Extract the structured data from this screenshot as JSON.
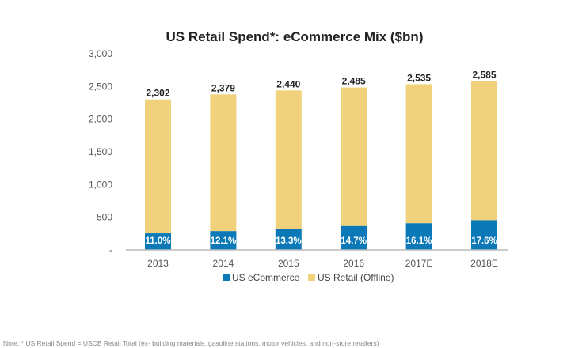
{
  "chart_data": {
    "type": "bar",
    "stacked": true,
    "title": "US Retail Spend*: eCommerce Mix ($bn)",
    "xlabel": "",
    "ylabel": "",
    "ylim": [
      0,
      3000
    ],
    "yticks": [
      0,
      500,
      1000,
      1500,
      2000,
      2500,
      3000
    ],
    "ytick_labels": [
      "-",
      "500",
      "1,000",
      "1,500",
      "2,000",
      "2,500",
      "3,000"
    ],
    "categories": [
      "2013",
      "2014",
      "2015",
      "2016",
      "2017E",
      "2018E"
    ],
    "totals": [
      2302,
      2379,
      2440,
      2485,
      2535,
      2585
    ],
    "total_labels": [
      "2,302",
      "2,379",
      "2,440",
      "2,485",
      "2,535",
      "2,585"
    ],
    "ecommerce_share_labels": [
      "11.0%",
      "12.1%",
      "13.3%",
      "14.7%",
      "16.1%",
      "17.6%"
    ],
    "series": [
      {
        "name": "US eCommerce",
        "color": "#0b78b8",
        "values": [
          253,
          288,
          325,
          365,
          408,
          455
        ]
      },
      {
        "name": "US Retail (Offline)",
        "color": "#f0d27c",
        "values": [
          2049,
          2091,
          2115,
          2120,
          2127,
          2130
        ]
      }
    ],
    "grid": false,
    "legend": "bottom"
  },
  "note": "Note: * US Retail Spend  = USCB Retail Total (ex- building materials, gasoline stations, motor vehicles, and non-store retailers)"
}
